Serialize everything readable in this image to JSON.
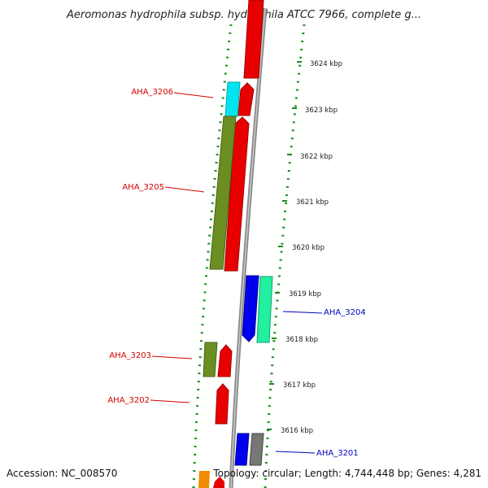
{
  "title": "Aeromonas hydrophila subsp. hydrophila ATCC 7966, complete g...",
  "footer": {
    "accession": "Accession: NC_008570",
    "topology": "Topology: circular; Length: 4,744,448 bp; Genes: 4,281"
  },
  "scale": {
    "ticks": [
      {
        "label": "3624 kbp"
      },
      {
        "label": "3623 kbp"
      },
      {
        "label": "3622 kbp"
      },
      {
        "label": "3621 kbp"
      },
      {
        "label": "3620 kbp"
      },
      {
        "label": "3619 kbp"
      },
      {
        "label": "3618 kbp"
      },
      {
        "label": "3617 kbp"
      },
      {
        "label": "3616 kbp"
      }
    ]
  },
  "gene_labels": [
    {
      "text": "AHA_3206",
      "color": "#d40000"
    },
    {
      "text": "AHA_3205",
      "color": "#d40000"
    },
    {
      "text": "AHA_3204",
      "color": "#0000c0"
    },
    {
      "text": "AHA_3203",
      "color": "#d40000"
    },
    {
      "text": "AHA_3202",
      "color": "#d40000"
    },
    {
      "text": "AHA_3201",
      "color": "#0000c0"
    }
  ],
  "feature_colors": {
    "cds": "#e80000",
    "gc_skew_plus": "#6b8e23",
    "gc_skew_minus": "#0000ee",
    "mint": "#22f0a0",
    "cyan": "#00e5f0",
    "grey": "#777777",
    "orange": "#f08c00",
    "dotted_ring": "#1a8a1a"
  }
}
